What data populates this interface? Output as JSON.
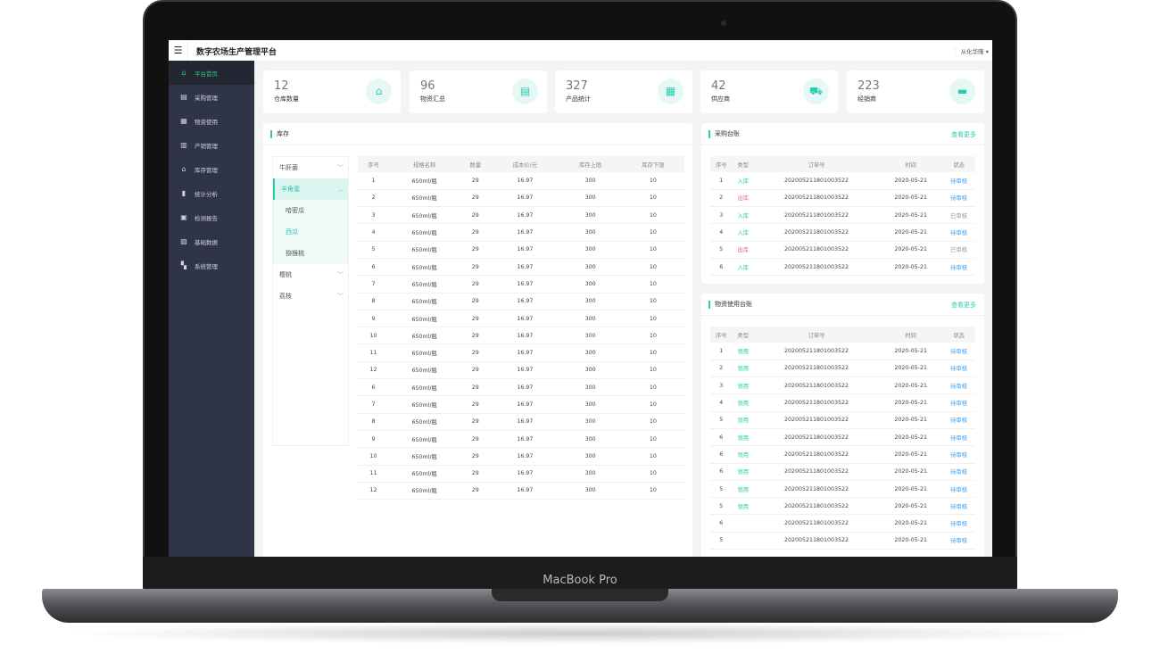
{
  "device": {
    "brand": "MacBook Pro"
  },
  "header": {
    "title": "数字农场生产管理平台",
    "user": "从化华隆",
    "menu_icon": "hamburger-icon"
  },
  "sidebar": {
    "items": [
      {
        "label": "平台首页",
        "icon": "home-icon",
        "glyph": "⌂",
        "active": true
      },
      {
        "label": "采购管理",
        "icon": "clipboard-icon",
        "glyph": "▤"
      },
      {
        "label": "物资使用",
        "icon": "box-icon",
        "glyph": "▦"
      },
      {
        "label": "产销管理",
        "icon": "store-icon",
        "glyph": "▥"
      },
      {
        "label": "库存管理",
        "icon": "warehouse-icon",
        "glyph": "⌂"
      },
      {
        "label": "统计分析",
        "icon": "bar-chart-icon",
        "glyph": "▮"
      },
      {
        "label": "检测报告",
        "icon": "report-icon",
        "glyph": "▣"
      },
      {
        "label": "基础数据",
        "icon": "image-icon",
        "glyph": "▧"
      },
      {
        "label": "系统管理",
        "icon": "grid-icon",
        "glyph": "▚"
      }
    ]
  },
  "stats": [
    {
      "value": "12",
      "label": "仓库数量",
      "icon": "house-icon",
      "glyph": "⌂"
    },
    {
      "value": "96",
      "label": "物资汇总",
      "icon": "package-icon",
      "glyph": "▤"
    },
    {
      "value": "327",
      "label": "产品统计",
      "icon": "product-search-icon",
      "glyph": "▦"
    },
    {
      "value": "42",
      "label": "供应商",
      "icon": "truck-icon",
      "glyph": "⛟"
    },
    {
      "value": "223",
      "label": "经销商",
      "icon": "shop-icon",
      "glyph": "▬"
    }
  ],
  "colors": {
    "accent": "#2ccbb1",
    "out": "#f56c6c",
    "pending": "#3a9ff5",
    "sidebar": "#2f3447"
  },
  "inventory": {
    "title": "库存",
    "tree": [
      {
        "label": "牛肝菌"
      },
      {
        "label": "羊角蜜",
        "open": true,
        "children": [
          {
            "label": "哈密瓜"
          },
          {
            "label": "西瓜",
            "active": true
          },
          {
            "label": "猕猴桃"
          }
        ]
      },
      {
        "label": "樱桃"
      },
      {
        "label": "荔枝"
      }
    ],
    "columns": [
      "序号",
      "规格名称",
      "数量",
      "成本价/元",
      "库存上限",
      "库存下限"
    ],
    "rows": [
      [
        "1",
        "650ml/瓶",
        "29",
        "16.97",
        "300",
        "10"
      ],
      [
        "2",
        "650ml/瓶",
        "29",
        "16.97",
        "300",
        "10"
      ],
      [
        "3",
        "650ml/瓶",
        "29",
        "16.97",
        "300",
        "10"
      ],
      [
        "4",
        "650ml/瓶",
        "29",
        "16.97",
        "300",
        "10"
      ],
      [
        "5",
        "650ml/瓶",
        "29",
        "16.97",
        "300",
        "10"
      ],
      [
        "6",
        "650ml/瓶",
        "29",
        "16.97",
        "300",
        "10"
      ],
      [
        "7",
        "650ml/瓶",
        "29",
        "16.97",
        "300",
        "10"
      ],
      [
        "8",
        "650ml/瓶",
        "29",
        "16.97",
        "300",
        "10"
      ],
      [
        "9",
        "650ml/瓶",
        "29",
        "16.97",
        "300",
        "10"
      ],
      [
        "10",
        "650ml/瓶",
        "29",
        "16.97",
        "300",
        "10"
      ],
      [
        "11",
        "650ml/瓶",
        "29",
        "16.97",
        "300",
        "10"
      ],
      [
        "12",
        "650ml/瓶",
        "29",
        "16.97",
        "300",
        "10"
      ],
      [
        "6",
        "650ml/瓶",
        "29",
        "16.97",
        "300",
        "10"
      ],
      [
        "7",
        "650ml/瓶",
        "29",
        "16.97",
        "300",
        "10"
      ],
      [
        "8",
        "650ml/瓶",
        "29",
        "16.97",
        "300",
        "10"
      ],
      [
        "9",
        "650ml/瓶",
        "29",
        "16.97",
        "300",
        "10"
      ],
      [
        "10",
        "650ml/瓶",
        "29",
        "16.97",
        "300",
        "10"
      ],
      [
        "11",
        "650ml/瓶",
        "29",
        "16.97",
        "300",
        "10"
      ],
      [
        "12",
        "650ml/瓶",
        "29",
        "16.97",
        "300",
        "10"
      ]
    ]
  },
  "purchase": {
    "title": "采购台账",
    "more": "查看更多",
    "columns": [
      "序号",
      "类型",
      "订单号",
      "时间",
      "状态"
    ],
    "rows": [
      [
        "1",
        "入库",
        "202005211801003522",
        "2020-05-21",
        "待审核"
      ],
      [
        "2",
        "出库",
        "202005211801003522",
        "2020-05-21",
        "待审核"
      ],
      [
        "3",
        "入库",
        "202005211801003522",
        "2020-05-21",
        "已审核"
      ],
      [
        "4",
        "入库",
        "202005211801003522",
        "2020-05-21",
        "待审核"
      ],
      [
        "5",
        "出库",
        "202005211801003522",
        "2020-05-21",
        "已审核"
      ],
      [
        "6",
        "入库",
        "202005211801003522",
        "2020-05-21",
        "待审核"
      ]
    ]
  },
  "usage": {
    "title": "物资使用台账",
    "more": "查看更多",
    "columns": [
      "序号",
      "类型",
      "订单号",
      "时间",
      "状态"
    ],
    "rows": [
      [
        "1",
        "领用",
        "202005211801003522",
        "2020-05-21",
        "待审核"
      ],
      [
        "2",
        "领用",
        "202005211801003522",
        "2020-05-21",
        "待审核"
      ],
      [
        "3",
        "领用",
        "202005211801003522",
        "2020-05-21",
        "待审核"
      ],
      [
        "4",
        "领用",
        "202005211801003522",
        "2020-05-21",
        "待审核"
      ],
      [
        "5",
        "领用",
        "202005211801003522",
        "2020-05-21",
        "待审核"
      ],
      [
        "6",
        "领用",
        "202005211801003522",
        "2020-05-21",
        "待审核"
      ],
      [
        "6",
        "领用",
        "202005211801003522",
        "2020-05-21",
        "待审核"
      ],
      [
        "6",
        "领用",
        "202005211801003522",
        "2020-05-21",
        "待审核"
      ],
      [
        "5",
        "领用",
        "202005211801003522",
        "2020-05-21",
        "待审核"
      ],
      [
        "5",
        "领用",
        "202005211801003522",
        "2020-05-21",
        "待审核"
      ],
      [
        "6",
        "",
        "202005211801003522",
        "2020-05-21",
        "待审核"
      ],
      [
        "5",
        "",
        "202005211801003522",
        "2020-05-21",
        "待审核"
      ]
    ]
  }
}
